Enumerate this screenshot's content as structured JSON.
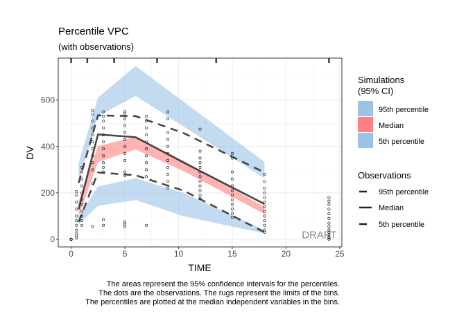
{
  "chart_data": {
    "type": "line",
    "title": "Percentile VPC",
    "subtitle": "(with observations)",
    "xlabel": "TIME",
    "ylabel": "DV",
    "xlim": [
      -1.2,
      25.2
    ],
    "ylim": [
      -33,
      781
    ],
    "x_ticks": [
      0,
      5,
      10,
      15,
      20,
      25
    ],
    "y_ticks": [
      0,
      200,
      400,
      600
    ],
    "grid": true,
    "watermark": "DRAFT",
    "caption": [
      "The areas represent the 95% confidence intervals for the percentiles.",
      "The dots are the observations. The rugs represent the limits of the bins.",
      "The percentiles are plotted at the median independent variables in the bins."
    ],
    "bin_limits": [
      0,
      1.5,
      4,
      8,
      13.5,
      24
    ],
    "bin_x": [
      0.7,
      2.5,
      6,
      10.5,
      18
    ],
    "simulation_ci": [
      {
        "name": "95th percentile",
        "color": "#9ac3e6",
        "low": [
          243,
          531,
          618,
          485,
          263
        ],
        "high": [
          328,
          611,
          747,
          592,
          333
        ]
      },
      {
        "name": "Median",
        "color": "#ff8080",
        "low": [
          99,
          333,
          387,
          293,
          109
        ],
        "high": [
          164,
          402,
          442,
          338,
          139
        ]
      },
      {
        "name": "5th percentile",
        "color": "#9ac3e6",
        "low": [
          65,
          144,
          169,
          99,
          25
        ],
        "high": [
          99,
          228,
          263,
          199,
          40
        ]
      }
    ],
    "observed_percentiles": [
      {
        "name": "95th percentile",
        "dash": "dashed",
        "values": [
          243,
          534,
          531,
          457,
          288
        ]
      },
      {
        "name": "Median",
        "dash": "solid",
        "values": [
          130,
          452,
          440,
          330,
          152
        ]
      },
      {
        "name": "5th percentile",
        "dash": "dashed",
        "values": [
          75,
          288,
          276,
          209,
          30
        ]
      }
    ],
    "observations": [
      {
        "x": 0,
        "y": [
          0,
          0,
          0,
          0,
          0,
          0
        ]
      },
      {
        "x": 0.5,
        "y": [
          5,
          15,
          25,
          40,
          60,
          80,
          100,
          130,
          160,
          190,
          205
        ]
      },
      {
        "x": 1,
        "y": [
          60,
          80,
          100,
          120,
          150,
          170,
          200,
          230,
          260,
          290,
          310
        ]
      },
      {
        "x": 2,
        "y": [
          55,
          240,
          300,
          330,
          360,
          390,
          420,
          450,
          480,
          510,
          540,
          555
        ]
      },
      {
        "x": 3,
        "y": [
          60,
          85,
          290,
          310,
          330,
          360,
          390,
          420,
          450,
          480,
          510,
          530,
          550
        ]
      },
      {
        "x": 5,
        "y": [
          55,
          65,
          75,
          275,
          290,
          340,
          370,
          400,
          430,
          460,
          490,
          520,
          540,
          550
        ]
      },
      {
        "x": 7,
        "y": [
          60,
          270,
          300,
          330,
          360,
          390,
          420,
          450,
          480,
          510,
          530
        ]
      },
      {
        "x": 9,
        "y": [
          220,
          250,
          280,
          310,
          340,
          370,
          400,
          430,
          460,
          520,
          550
        ]
      },
      {
        "x": 12,
        "y": [
          175,
          190,
          210,
          230,
          250,
          270,
          290,
          310,
          330,
          350,
          380,
          475
        ]
      },
      {
        "x": 15,
        "y": [
          95,
          110,
          130,
          150,
          170,
          190,
          210,
          230,
          260,
          290,
          350,
          370
        ]
      },
      {
        "x": 18,
        "y": [
          30,
          40,
          60,
          80,
          100,
          120,
          140,
          160,
          180,
          200,
          220,
          250,
          280
        ]
      },
      {
        "x": 24,
        "y": [
          0,
          5,
          10,
          20,
          30,
          40,
          55,
          70,
          90,
          110,
          130,
          150,
          165,
          180
        ]
      }
    ],
    "legend": {
      "placement": "right",
      "simulations_title": [
        "Simulations",
        "(95% CI)"
      ],
      "observations_title": "Observations"
    }
  }
}
